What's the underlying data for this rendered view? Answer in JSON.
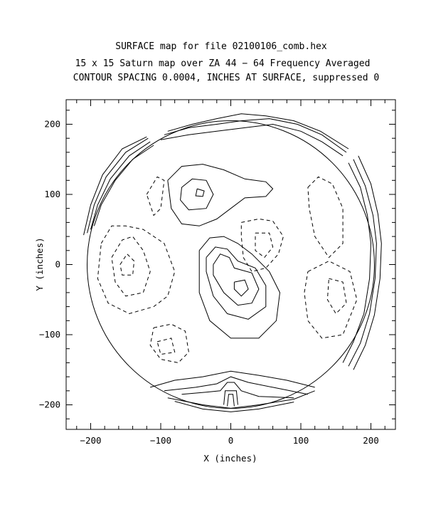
{
  "chart_data": {
    "type": "contour",
    "title_lines": [
      "SURFACE map for file 02100106_comb.hex",
      "15 x 15 Saturn map over ZA 44 − 64  Frequency Averaged",
      "CONTOUR SPACING 0.0004, INCHES AT SURFACE, suppressed 0"
    ],
    "xlabel": "X (inches)",
    "ylabel": "Y (inches)",
    "xlim": [
      -235,
      235
    ],
    "ylim": [
      -235,
      235
    ],
    "xticks": [
      -200,
      -100,
      0,
      100,
      200
    ],
    "yticks": [
      -200,
      -100,
      0,
      100,
      200
    ],
    "xtick_labels": [
      "−200",
      "−100",
      "0",
      "100",
      "200"
    ],
    "ytick_labels": [
      "−200",
      "−100",
      "0",
      "100",
      "200"
    ],
    "contour_spacing": 0.0004,
    "dish_radius": 205,
    "positive_contours": [
      {
        "name": "upper-left-outer",
        "points": [
          [
            -90,
            120
          ],
          [
            -70,
            140
          ],
          [
            -40,
            143
          ],
          [
            -10,
            135
          ],
          [
            20,
            122
          ],
          [
            50,
            118
          ],
          [
            60,
            108
          ],
          [
            50,
            97
          ],
          [
            20,
            95
          ],
          [
            0,
            80
          ],
          [
            -20,
            65
          ],
          [
            -45,
            55
          ],
          [
            -70,
            58
          ],
          [
            -85,
            80
          ],
          [
            -90,
            120
          ]
        ]
      },
      {
        "name": "upper-left-mid",
        "points": [
          [
            -70,
            110
          ],
          [
            -55,
            122
          ],
          [
            -35,
            120
          ],
          [
            -25,
            100
          ],
          [
            -35,
            80
          ],
          [
            -60,
            78
          ],
          [
            -72,
            92
          ],
          [
            -70,
            110
          ]
        ]
      },
      {
        "name": "upper-left-inner",
        "points": [
          [
            -48,
            108
          ],
          [
            -38,
            105
          ],
          [
            -40,
            97
          ],
          [
            -50,
            98
          ],
          [
            -48,
            108
          ]
        ]
      },
      {
        "name": "center-outer",
        "points": [
          [
            -45,
            20
          ],
          [
            -30,
            38
          ],
          [
            -10,
            40
          ],
          [
            10,
            30
          ],
          [
            30,
            15
          ],
          [
            55,
            -10
          ],
          [
            70,
            -40
          ],
          [
            65,
            -80
          ],
          [
            40,
            -105
          ],
          [
            0,
            -105
          ],
          [
            -30,
            -80
          ],
          [
            -45,
            -40
          ],
          [
            -45,
            20
          ]
        ]
      },
      {
        "name": "center-mid",
        "points": [
          [
            -35,
            10
          ],
          [
            -22,
            25
          ],
          [
            -5,
            22
          ],
          [
            10,
            5
          ],
          [
            35,
            -5
          ],
          [
            50,
            -30
          ],
          [
            50,
            -60
          ],
          [
            25,
            -78
          ],
          [
            -5,
            -70
          ],
          [
            -25,
            -45
          ],
          [
            -35,
            -10
          ],
          [
            -35,
            10
          ]
        ]
      },
      {
        "name": "center-inner",
        "points": [
          [
            -25,
            0
          ],
          [
            -15,
            15
          ],
          [
            -2,
            10
          ],
          [
            5,
            -5
          ],
          [
            30,
            -12
          ],
          [
            40,
            -35
          ],
          [
            30,
            -55
          ],
          [
            10,
            -58
          ],
          [
            -10,
            -40
          ],
          [
            -25,
            -15
          ],
          [
            -25,
            0
          ]
        ]
      },
      {
        "name": "center-core",
        "points": [
          [
            5,
            -25
          ],
          [
            20,
            -22
          ],
          [
            25,
            -35
          ],
          [
            15,
            -45
          ],
          [
            5,
            -35
          ],
          [
            5,
            -25
          ]
        ]
      },
      {
        "name": "bottom-arc-1",
        "points": [
          [
            -115,
            -175
          ],
          [
            -80,
            -165
          ],
          [
            -40,
            -160
          ],
          [
            0,
            -152
          ],
          [
            40,
            -158
          ],
          [
            80,
            -165
          ],
          [
            120,
            -175
          ]
        ]
      },
      {
        "name": "bottom-arc-2",
        "points": [
          [
            -95,
            -180
          ],
          [
            -50,
            -175
          ],
          [
            -20,
            -170
          ],
          [
            0,
            -160
          ],
          [
            25,
            -168
          ],
          [
            60,
            -175
          ],
          [
            110,
            -185
          ]
        ]
      },
      {
        "name": "bottom-arc-3",
        "points": [
          [
            -70,
            -185
          ],
          [
            -35,
            -182
          ],
          [
            -15,
            -180
          ],
          [
            -5,
            -168
          ],
          [
            5,
            -168
          ],
          [
            15,
            -180
          ],
          [
            40,
            -188
          ],
          [
            90,
            -190
          ]
        ]
      },
      {
        "name": "bottom-core-1",
        "points": [
          [
            -10,
            -200
          ],
          [
            -8,
            -180
          ],
          [
            8,
            -180
          ],
          [
            10,
            -200
          ]
        ]
      },
      {
        "name": "bottom-core-2",
        "points": [
          [
            -5,
            -202
          ],
          [
            -3,
            -185
          ],
          [
            3,
            -185
          ],
          [
            5,
            -202
          ]
        ]
      }
    ],
    "negative_contours": [
      {
        "name": "right-center",
        "points": [
          [
            15,
            60
          ],
          [
            40,
            65
          ],
          [
            60,
            62
          ],
          [
            75,
            40
          ],
          [
            68,
            15
          ],
          [
            50,
            -5
          ],
          [
            30,
            -10
          ],
          [
            18,
            10
          ],
          [
            15,
            40
          ],
          [
            15,
            60
          ]
        ]
      },
      {
        "name": "right-center-inner",
        "points": [
          [
            35,
            45
          ],
          [
            55,
            45
          ],
          [
            60,
            25
          ],
          [
            48,
            10
          ],
          [
            35,
            20
          ],
          [
            35,
            45
          ]
        ]
      },
      {
        "name": "left-mid",
        "points": [
          [
            -170,
            10
          ],
          [
            -155,
            35
          ],
          [
            -140,
            40
          ],
          [
            -125,
            20
          ],
          [
            -115,
            -10
          ],
          [
            -125,
            -40
          ],
          [
            -150,
            -45
          ],
          [
            -165,
            -25
          ],
          [
            -170,
            10
          ]
        ]
      },
      {
        "name": "left-mid-inner",
        "points": [
          [
            -158,
            0
          ],
          [
            -148,
            15
          ],
          [
            -138,
            5
          ],
          [
            -140,
            -15
          ],
          [
            -155,
            -15
          ],
          [
            -158,
            0
          ]
        ]
      },
      {
        "name": "left-outer",
        "points": [
          [
            -185,
            30
          ],
          [
            -170,
            55
          ],
          [
            -150,
            55
          ],
          [
            -125,
            50
          ],
          [
            -95,
            30
          ],
          [
            -80,
            -10
          ],
          [
            -90,
            -45
          ],
          [
            -110,
            -60
          ],
          [
            -145,
            -70
          ],
          [
            -175,
            -55
          ],
          [
            -190,
            -20
          ],
          [
            -185,
            30
          ]
        ]
      },
      {
        "name": "left-upper",
        "points": [
          [
            -120,
            100
          ],
          [
            -105,
            125
          ],
          [
            -95,
            120
          ],
          [
            -100,
            80
          ],
          [
            -110,
            70
          ],
          [
            -120,
            100
          ]
        ]
      },
      {
        "name": "left-lower",
        "points": [
          [
            -110,
            -90
          ],
          [
            -85,
            -85
          ],
          [
            -65,
            -95
          ],
          [
            -60,
            -125
          ],
          [
            -75,
            -140
          ],
          [
            -100,
            -135
          ],
          [
            -115,
            -115
          ],
          [
            -110,
            -90
          ]
        ]
      },
      {
        "name": "left-lower-inner",
        "points": [
          [
            -105,
            -110
          ],
          [
            -85,
            -105
          ],
          [
            -80,
            -125
          ],
          [
            -100,
            -128
          ],
          [
            -105,
            -110
          ]
        ]
      },
      {
        "name": "right-upper",
        "points": [
          [
            110,
            110
          ],
          [
            125,
            125
          ],
          [
            145,
            115
          ],
          [
            160,
            80
          ],
          [
            160,
            30
          ],
          [
            140,
            10
          ],
          [
            120,
            40
          ],
          [
            112,
            80
          ],
          [
            110,
            110
          ]
        ]
      },
      {
        "name": "right-lower",
        "points": [
          [
            110,
            -10
          ],
          [
            140,
            5
          ],
          [
            170,
            -10
          ],
          [
            180,
            -50
          ],
          [
            160,
            -100
          ],
          [
            130,
            -105
          ],
          [
            110,
            -80
          ],
          [
            105,
            -40
          ],
          [
            110,
            -10
          ]
        ]
      },
      {
        "name": "right-lower-inner",
        "points": [
          [
            140,
            -20
          ],
          [
            160,
            -25
          ],
          [
            165,
            -55
          ],
          [
            150,
            -70
          ],
          [
            138,
            -50
          ],
          [
            140,
            -20
          ]
        ]
      }
    ],
    "edge_rings": [
      {
        "name": "rim-left-1",
        "points": [
          [
            -195,
            55
          ],
          [
            -185,
            85
          ],
          [
            -165,
            120
          ],
          [
            -140,
            150
          ],
          [
            -110,
            170
          ]
        ]
      },
      {
        "name": "rim-left-2",
        "points": [
          [
            -200,
            50
          ],
          [
            -190,
            85
          ],
          [
            -172,
            122
          ],
          [
            -145,
            155
          ],
          [
            -115,
            175
          ]
        ]
      },
      {
        "name": "rim-left-3",
        "points": [
          [
            -205,
            45
          ],
          [
            -195,
            85
          ],
          [
            -178,
            125
          ],
          [
            -150,
            160
          ],
          [
            -118,
            180
          ]
        ]
      },
      {
        "name": "rim-left-4",
        "points": [
          [
            -210,
            42
          ],
          [
            -200,
            85
          ],
          [
            -183,
            128
          ],
          [
            -155,
            165
          ],
          [
            -120,
            182
          ]
        ]
      },
      {
        "name": "rim-top-1",
        "points": [
          [
            -100,
            178
          ],
          [
            -60,
            185
          ],
          [
            -20,
            190
          ],
          [
            20,
            195
          ],
          [
            60,
            200
          ],
          [
            100,
            190
          ],
          [
            130,
            175
          ],
          [
            160,
            155
          ]
        ]
      },
      {
        "name": "rim-top-2",
        "points": [
          [
            -95,
            185
          ],
          [
            -60,
            195
          ],
          [
            -20,
            200
          ],
          [
            15,
            205
          ],
          [
            55,
            208
          ],
          [
            95,
            200
          ],
          [
            130,
            185
          ],
          [
            165,
            160
          ]
        ]
      },
      {
        "name": "rim-top-3",
        "points": [
          [
            -90,
            190
          ],
          [
            -55,
            200
          ],
          [
            -20,
            208
          ],
          [
            15,
            215
          ],
          [
            50,
            212
          ],
          [
            90,
            205
          ],
          [
            128,
            190
          ],
          [
            168,
            165
          ]
        ]
      },
      {
        "name": "rim-right-1",
        "points": [
          [
            168,
            145
          ],
          [
            185,
            110
          ],
          [
            195,
            70
          ],
          [
            200,
            30
          ],
          [
            198,
            -20
          ],
          [
            190,
            -70
          ],
          [
            175,
            -110
          ],
          [
            160,
            -140
          ]
        ]
      },
      {
        "name": "rim-right-2",
        "points": [
          [
            175,
            150
          ],
          [
            192,
            112
          ],
          [
            203,
            70
          ],
          [
            208,
            30
          ],
          [
            206,
            -20
          ],
          [
            198,
            -70
          ],
          [
            185,
            -112
          ],
          [
            168,
            -145
          ]
        ]
      },
      {
        "name": "rim-right-3",
        "points": [
          [
            182,
            155
          ],
          [
            200,
            115
          ],
          [
            210,
            72
          ],
          [
            215,
            30
          ],
          [
            213,
            -20
          ],
          [
            205,
            -72
          ],
          [
            192,
            -115
          ],
          [
            175,
            -150
          ]
        ]
      },
      {
        "name": "rim-bottom-1",
        "points": [
          [
            -90,
            -190
          ],
          [
            -40,
            -200
          ],
          [
            0,
            -205
          ],
          [
            40,
            -200
          ],
          [
            90,
            -192
          ],
          [
            120,
            -180
          ]
        ]
      },
      {
        "name": "rim-bottom-2",
        "points": [
          [
            -80,
            -195
          ],
          [
            -40,
            -206
          ],
          [
            0,
            -210
          ],
          [
            40,
            -206
          ],
          [
            90,
            -196
          ]
        ]
      }
    ]
  }
}
